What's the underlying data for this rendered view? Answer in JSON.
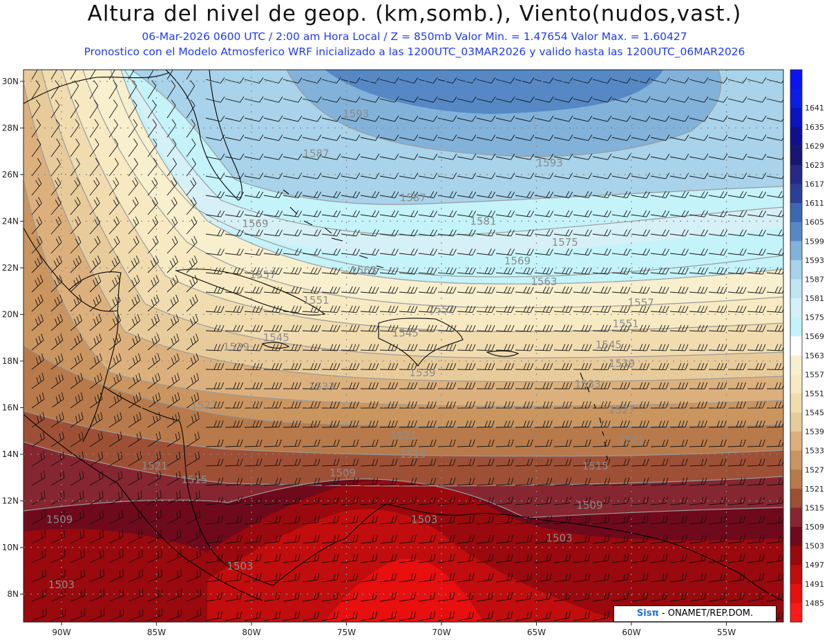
{
  "header": {
    "title": "Altura del nivel de geop. (km,somb.), Viento(nudos,vast.)",
    "subtitle_line1": "06-Mar-2026  0600 UTC / 2:00 am Hora Local / Z = 850mb     Valor Min. = 1.47654  Valor Max. = 1.60427",
    "subtitle_line2": "Pronostico con el Modelo Atmosferico WRF inicializado a las 1200UTC_03MAR2026 y valido hasta las  1200UTC_06MAR2026"
  },
  "map": {
    "lon_range": [
      -92.0,
      -52.0
    ],
    "lat_range": [
      6.8,
      30.5
    ],
    "lon_ticks": [
      {
        "value": -90,
        "label": "90W"
      },
      {
        "value": -85,
        "label": "85W"
      },
      {
        "value": -80,
        "label": "80W"
      },
      {
        "value": -75,
        "label": "75W"
      },
      {
        "value": -70,
        "label": "70W"
      },
      {
        "value": -65,
        "label": "65W"
      },
      {
        "value": -60,
        "label": "60W"
      },
      {
        "value": -55,
        "label": "55W"
      }
    ],
    "lat_ticks": [
      {
        "value": 8,
        "label": "8N"
      },
      {
        "value": 10,
        "label": "10N"
      },
      {
        "value": 12,
        "label": "12N"
      },
      {
        "value": 14,
        "label": "14N"
      },
      {
        "value": 16,
        "label": "16N"
      },
      {
        "value": 18,
        "label": "18N"
      },
      {
        "value": 20,
        "label": "20N"
      },
      {
        "value": 22,
        "label": "22N"
      },
      {
        "value": 24,
        "label": "24N"
      },
      {
        "value": 26,
        "label": "26N"
      },
      {
        "value": 28,
        "label": "28N"
      },
      {
        "value": 30,
        "label": "30N"
      }
    ],
    "contour_labels": [
      {
        "lon": -74.5,
        "lat": 28.6,
        "text": "1593"
      },
      {
        "lon": -76.6,
        "lat": 26.9,
        "text": "1587"
      },
      {
        "lon": -64.3,
        "lat": 26.5,
        "text": "1593"
      },
      {
        "lon": -71.5,
        "lat": 25.0,
        "text": "1587"
      },
      {
        "lon": -67.8,
        "lat": 24.0,
        "text": "1581"
      },
      {
        "lon": -79.8,
        "lat": 23.9,
        "text": "1569"
      },
      {
        "lon": -63.5,
        "lat": 23.1,
        "text": "1575"
      },
      {
        "lon": -66.0,
        "lat": 22.3,
        "text": "1569"
      },
      {
        "lon": -79.4,
        "lat": 21.7,
        "text": "1557"
      },
      {
        "lon": -74.1,
        "lat": 21.9,
        "text": "1563"
      },
      {
        "lon": -64.6,
        "lat": 21.4,
        "text": "1563"
      },
      {
        "lon": -59.5,
        "lat": 20.5,
        "text": "1557"
      },
      {
        "lon": -70.0,
        "lat": 20.2,
        "text": "1557"
      },
      {
        "lon": -76.6,
        "lat": 20.6,
        "text": "1551"
      },
      {
        "lon": -60.3,
        "lat": 19.6,
        "text": "1551"
      },
      {
        "lon": -78.7,
        "lat": 19.0,
        "text": "1545"
      },
      {
        "lon": -71.9,
        "lat": 19.2,
        "text": "1545"
      },
      {
        "lon": -61.2,
        "lat": 18.7,
        "text": "1545"
      },
      {
        "lon": -80.8,
        "lat": 18.6,
        "text": "1539"
      },
      {
        "lon": -71.0,
        "lat": 17.5,
        "text": "1539"
      },
      {
        "lon": -60.5,
        "lat": 17.9,
        "text": "1539"
      },
      {
        "lon": -76.3,
        "lat": 16.9,
        "text": "1533"
      },
      {
        "lon": -62.3,
        "lat": 17.0,
        "text": "1533"
      },
      {
        "lon": -60.5,
        "lat": 15.9,
        "text": "1527"
      },
      {
        "lon": -82.5,
        "lat": 16.1,
        "text": "1527"
      },
      {
        "lon": -72.0,
        "lat": 14.8,
        "text": "1521"
      },
      {
        "lon": -60.0,
        "lat": 14.6,
        "text": "1521"
      },
      {
        "lon": -85.1,
        "lat": 13.5,
        "text": "1521"
      },
      {
        "lon": -71.5,
        "lat": 14.0,
        "text": "1515"
      },
      {
        "lon": -83.0,
        "lat": 12.9,
        "text": "1515"
      },
      {
        "lon": -61.9,
        "lat": 13.5,
        "text": "1515"
      },
      {
        "lon": -75.2,
        "lat": 13.2,
        "text": "1509"
      },
      {
        "lon": -62.2,
        "lat": 11.8,
        "text": "1509"
      },
      {
        "lon": -90.1,
        "lat": 11.2,
        "text": "1509"
      },
      {
        "lon": -70.9,
        "lat": 11.2,
        "text": "1503"
      },
      {
        "lon": -63.8,
        "lat": 10.4,
        "text": "1503"
      },
      {
        "lon": -80.6,
        "lat": 9.2,
        "text": "1503"
      },
      {
        "lon": -90.0,
        "lat": 8.4,
        "text": "1503"
      }
    ]
  },
  "colorbar": {
    "levels": [
      {
        "label": "",
        "color": "#0a14f0"
      },
      {
        "label": "1641",
        "color": "#0a1ee6"
      },
      {
        "label": "1635",
        "color": "#0b14c2"
      },
      {
        "label": "1629",
        "color": "#0d118f"
      },
      {
        "label": "1623",
        "color": "#171773"
      },
      {
        "label": "1617",
        "color": "#262a85"
      },
      {
        "label": "1611",
        "color": "#2c3f98"
      },
      {
        "label": "1605",
        "color": "#3a68b3"
      },
      {
        "label": "1599",
        "color": "#5588c5"
      },
      {
        "label": "1593",
        "color": "#82b2da"
      },
      {
        "label": "1587",
        "color": "#a8d3ea"
      },
      {
        "label": "1581",
        "color": "#bfe6f1"
      },
      {
        "label": "1575",
        "color": "#d5f0f6"
      },
      {
        "label": "1569",
        "color": "#c4f3fa"
      },
      {
        "label": "1563",
        "color": "#ffffff"
      },
      {
        "label": "1557",
        "color": "#f8efcf"
      },
      {
        "label": "1551",
        "color": "#f7eac2"
      },
      {
        "label": "1545",
        "color": "#f1dcb0"
      },
      {
        "label": "1539",
        "color": "#e8cb9b"
      },
      {
        "label": "1533",
        "color": "#dcb07c"
      },
      {
        "label": "1527",
        "color": "#cb9560"
      },
      {
        "label": "1521",
        "color": "#b87a4b"
      },
      {
        "label": "1515",
        "color": "#9e5036"
      },
      {
        "label": "1509",
        "color": "#862630"
      },
      {
        "label": "1503",
        "color": "#6f0a1c"
      },
      {
        "label": "1497",
        "color": "#99090d"
      },
      {
        "label": "1491",
        "color": "#c10d0d"
      },
      {
        "label": "1485",
        "color": "#e80f0f"
      },
      {
        "label": "",
        "color": "#ff1a1a"
      }
    ]
  },
  "credit": {
    "logo": "Sisπ",
    "text": " - ONAMET/REP.DOM."
  }
}
